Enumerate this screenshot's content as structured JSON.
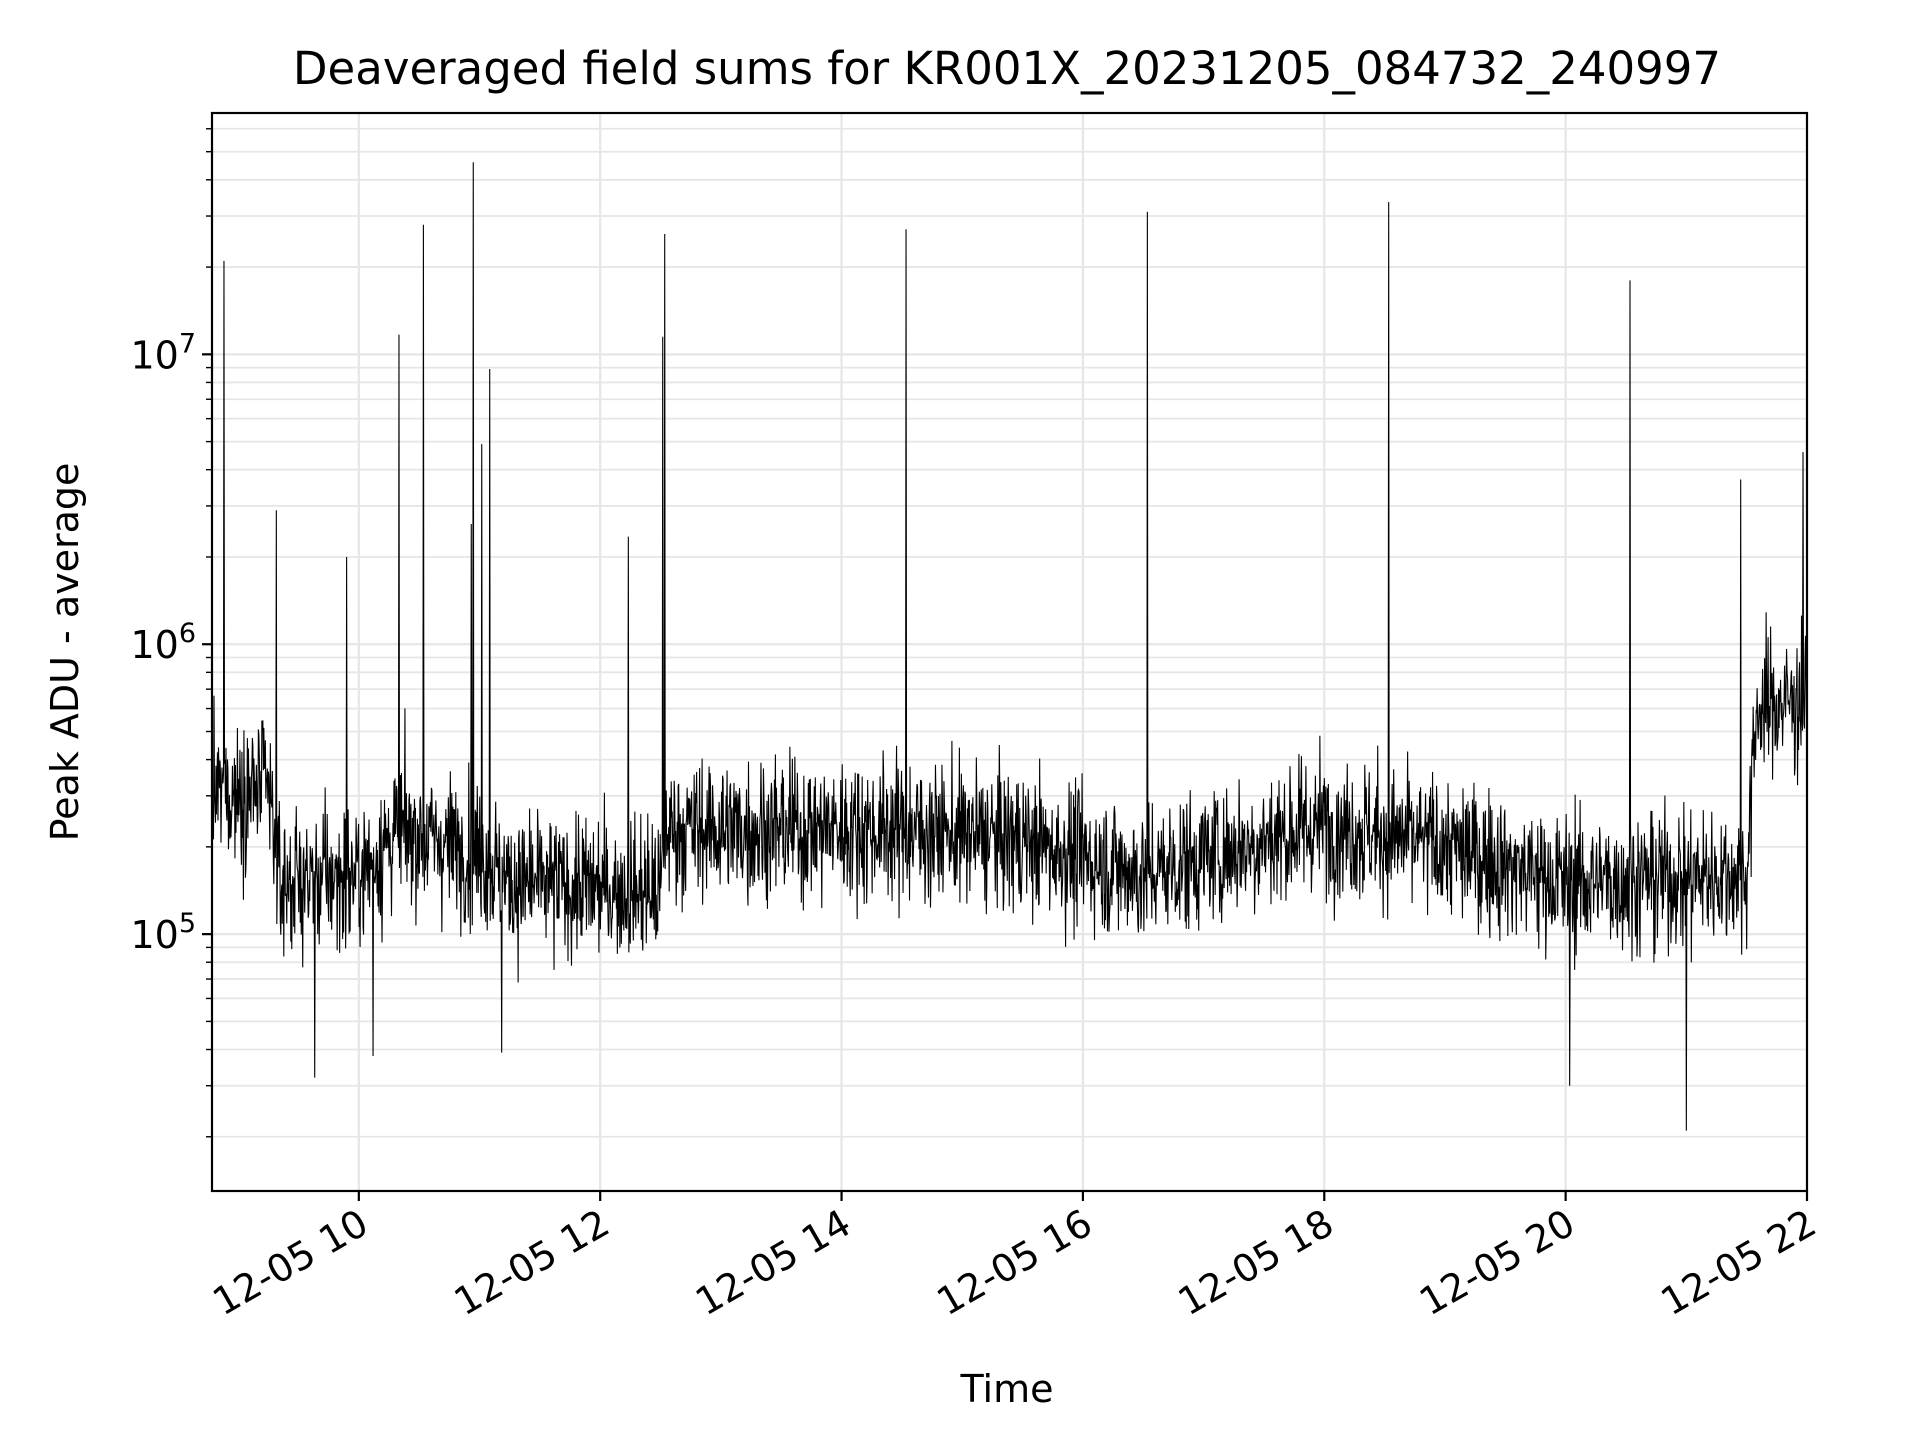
{
  "chart_data": {
    "type": "line",
    "title": "Deaveraged field sums for KR001X_20231205_084732_240997",
    "xlabel": "Time",
    "ylabel": "Peak ADU - average",
    "x_tick_labels": [
      "12-05 10",
      "12-05 12",
      "12-05 14",
      "12-05 16",
      "12-05 18",
      "12-05 20",
      "12-05 22"
    ],
    "y_tick_labels": [
      {
        "base": "10",
        "exp": "5",
        "value": 100000
      },
      {
        "base": "10",
        "exp": "6",
        "value": 1000000
      },
      {
        "base": "10",
        "exp": "7",
        "value": 10000000
      }
    ],
    "x_range": [
      "2023-12-05 08:47",
      "2023-12-05 22:00"
    ],
    "y_range": [
      13000,
      68000000
    ],
    "yscale": "log",
    "grid": "major and minor",
    "line_color": "#000000",
    "grid_color": "#e6e6e6",
    "baseline": [
      {
        "t": "2023-12-05 08:47",
        "v": 300000
      },
      {
        "t": "2023-12-05 09:15",
        "v": 320000
      },
      {
        "t": "2023-12-05 09:20",
        "v": 150000
      },
      {
        "t": "2023-12-05 10:00",
        "v": 160000
      },
      {
        "t": "2023-12-05 10:20",
        "v": 230000
      },
      {
        "t": "2023-12-05 11:00",
        "v": 190000
      },
      {
        "t": "2023-12-05 11:15",
        "v": 150000
      },
      {
        "t": "2023-12-05 12:30",
        "v": 140000
      },
      {
        "t": "2023-12-05 12:33",
        "v": 230000
      },
      {
        "t": "2023-12-05 14:30",
        "v": 230000
      },
      {
        "t": "2023-12-05 15:30",
        "v": 210000
      },
      {
        "t": "2023-12-05 16:30",
        "v": 160000
      },
      {
        "t": "2023-12-05 17:30",
        "v": 210000
      },
      {
        "t": "2023-12-05 18:00",
        "v": 240000
      },
      {
        "t": "2023-12-05 19:00",
        "v": 200000
      },
      {
        "t": "2023-12-05 20:00",
        "v": 150000
      },
      {
        "t": "2023-12-05 21:30",
        "v": 160000
      },
      {
        "t": "2023-12-05 21:35",
        "v": 600000
      },
      {
        "t": "2023-12-05 22:00",
        "v": 650000
      }
    ],
    "spikes": [
      {
        "t": "2023-12-05 08:53",
        "v": 21000000
      },
      {
        "t": "2023-12-05 09:19",
        "v": 2900000
      },
      {
        "t": "2023-12-05 09:54",
        "v": 2000000
      },
      {
        "t": "2023-12-05 10:20",
        "v": 11700000
      },
      {
        "t": "2023-12-05 10:32",
        "v": 28000000
      },
      {
        "t": "2023-12-05 10:56",
        "v": 2600000
      },
      {
        "t": "2023-12-05 10:57",
        "v": 46000000
      },
      {
        "t": "2023-12-05 11:01",
        "v": 4900000
      },
      {
        "t": "2023-12-05 11:05",
        "v": 8900000
      },
      {
        "t": "2023-12-05 12:14",
        "v": 2350000
      },
      {
        "t": "2023-12-05 12:31",
        "v": 11500000
      },
      {
        "t": "2023-12-05 12:32",
        "v": 26000000
      },
      {
        "t": "2023-12-05 14:32",
        "v": 27000000
      },
      {
        "t": "2023-12-05 16:32",
        "v": 31000000
      },
      {
        "t": "2023-12-05 18:32",
        "v": 33500000
      },
      {
        "t": "2023-12-05 20:32",
        "v": 18000000
      },
      {
        "t": "2023-12-05 21:27",
        "v": 3700000
      },
      {
        "t": "2023-12-05 21:58",
        "v": 4600000
      }
    ],
    "dips": [
      {
        "t": "2023-12-05 09:38",
        "v": 32000.0
      },
      {
        "t": "2023-12-05 10:07",
        "v": 38000
      },
      {
        "t": "2023-12-05 11:11",
        "v": 39000
      },
      {
        "t": "2023-12-05 20:02",
        "v": 30000
      },
      {
        "t": "2023-12-05 21:00",
        "v": 21000
      }
    ]
  }
}
